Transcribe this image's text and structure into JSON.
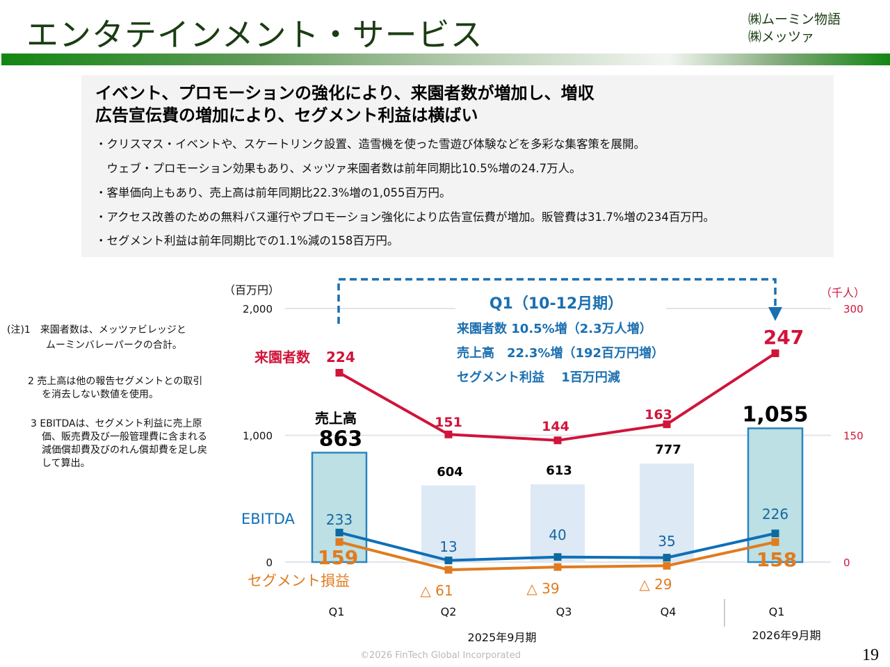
{
  "header": {
    "title": "エンタテインメント・サービス",
    "companies": [
      "㈱ムーミン物語",
      "㈱メッツァ"
    ]
  },
  "summary": {
    "headlines": [
      "イベント、プロモーションの強化により、来園者数が増加し、増収",
      "広告宣伝費の増加により、セグメント利益は横ばい"
    ],
    "bullets": [
      "・クリスマス・イベントや、スケートリンク設置、造雪機を使った雪遊び体験などを多彩な集客策を展開。",
      "　ウェブ・プロモーション効果もあり、メッツァ来園者数は前年同期比10.5%増の24.7万人。",
      "・客単価向上もあり、売上高は前年同期比22.3%増の1,055百万円。",
      "・アクセス改善のための無料バス運行やプロモーション強化により広告宣伝費が増加。販管費は31.7%増の234百万円。",
      "・セグメント利益は前年同期比での1.1%減の158百万円。"
    ]
  },
  "notes": [
    "(注)1　来園者数は、メッツァビレッジと",
    "ムーミンバレーパークの合計。",
    "2  売上高は他の報告セグメントとの取引",
    "を消去しない数値を使用。",
    "3  EBITDAは、セグメント利益に売上原",
    "価、販売費及び一般管理費に含まれる",
    "減価償却費及びのれん償却費を足し戻",
    "して算出。"
  ],
  "chart_data": {
    "type": "bar",
    "title": "",
    "categories": [
      "Q1",
      "Q2",
      "Q3",
      "Q4",
      "Q1"
    ],
    "period_labels": [
      "2025年9月期",
      "2026年9月期"
    ],
    "period_groups": [
      [
        0,
        1,
        2,
        3
      ],
      [
        4
      ]
    ],
    "left_axis": {
      "unit_label": "（百万円）",
      "ticks": [
        0,
        1000,
        2000
      ],
      "tick_labels": [
        "0",
        "1,000",
        "2,000"
      ],
      "range": [
        0,
        2000
      ]
    },
    "right_axis": {
      "unit_label": "（千人）",
      "ticks": [
        0,
        150,
        300
      ],
      "tick_labels": [
        "0",
        "150",
        "300"
      ],
      "range": [
        0,
        300
      ]
    },
    "grid": true,
    "series": [
      {
        "name": "売上高",
        "type": "bar",
        "axis": "left",
        "values": [
          863,
          604,
          613,
          777,
          1055
        ],
        "labels": [
          "863",
          "604",
          "613",
          "777",
          "1,055"
        ],
        "highlighted": [
          0,
          4
        ]
      },
      {
        "name": "来園者数",
        "type": "line",
        "axis": "right",
        "values": [
          224,
          151,
          144,
          163,
          247
        ],
        "labels": [
          "224",
          "151",
          "144",
          "163",
          "247"
        ],
        "color": "#d0143a"
      },
      {
        "name": "EBITDA",
        "type": "line",
        "axis": "left",
        "values": [
          233,
          13,
          40,
          35,
          226
        ],
        "labels": [
          "233",
          "13",
          "40",
          "35",
          "226"
        ],
        "color": "#0f6fb8"
      },
      {
        "name": "セグメント損益",
        "type": "line",
        "axis": "left",
        "values": [
          159,
          -61,
          -39,
          -29,
          158
        ],
        "labels": [
          "159",
          "△ 61",
          "△ 39",
          "△ 29",
          "158"
        ],
        "color": "#e07b20"
      }
    ],
    "legend_labels": {
      "revenue": "売上高",
      "visitors": "来園者数",
      "ebitda": "EBITDA",
      "segment": "セグメント損益"
    },
    "callout": {
      "title": "Q1（10-12月期）",
      "lines": [
        "来園者数 10.5%増（2.3万人増）",
        "売上高　22.3%増（192百万円増）",
        "セグメント利益　 1百万円減"
      ]
    }
  },
  "colors": {
    "title_green": "#1a3d12",
    "visitors_red": "#d0143a",
    "ebitda_blue": "#0f6fb8",
    "segment_orange": "#e07b20",
    "bar_highlight_fill": "#bce0e4",
    "bar_highlight_stroke": "#2a84bf",
    "bar_plain_fill": "#dde9f5",
    "callout_blue": "#1a6fb0"
  },
  "footer": {
    "copyright": "©2026 FinTech Global Incorporated",
    "page_number": "19"
  }
}
